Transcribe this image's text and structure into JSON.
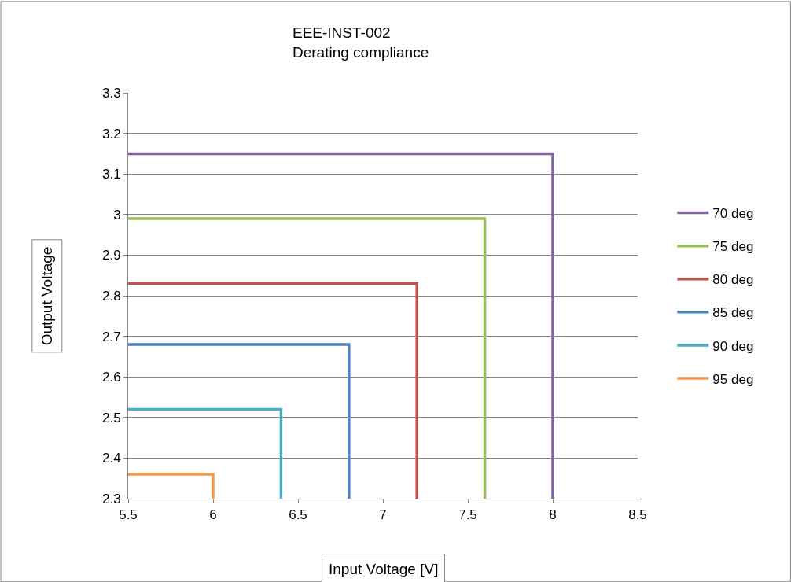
{
  "chart_data": {
    "type": "line",
    "title": "EEE-INST-002",
    "subtitle": "Derating compliance",
    "xlabel": "Input Voltage [V]",
    "ylabel": "Output Voltage",
    "series": [
      {
        "name": "70 deg",
        "color": "#8064a2",
        "x": [
          5.5,
          8,
          8
        ],
        "values": [
          3.15,
          3.15,
          2.3
        ]
      },
      {
        "name": "75 deg",
        "color": "#9bbb59",
        "x": [
          5.5,
          7.6,
          7.6
        ],
        "values": [
          2.99,
          2.99,
          2.3
        ]
      },
      {
        "name": "80 deg",
        "color": "#c0504d",
        "x": [
          5.5,
          7.2,
          7.2
        ],
        "values": [
          2.83,
          2.83,
          2.3
        ]
      },
      {
        "name": "85 deg",
        "color": "#4f81bd",
        "x": [
          5.5,
          6.8,
          6.8
        ],
        "values": [
          2.68,
          2.68,
          2.3
        ]
      },
      {
        "name": "90 deg",
        "color": "#4bacc6",
        "x": [
          5.5,
          6.4,
          6.4
        ],
        "values": [
          2.52,
          2.52,
          2.3
        ]
      },
      {
        "name": "95 deg",
        "color": "#f79646",
        "x": [
          5.5,
          6,
          6
        ],
        "values": [
          2.36,
          2.36,
          2.3
        ]
      }
    ],
    "xlim": [
      5.5,
      8.5
    ],
    "xticks": [
      5.5,
      6,
      6.5,
      7,
      7.5,
      8,
      8.5
    ],
    "ylim": [
      2.3,
      3.3
    ],
    "yticks": [
      2.3,
      2.4,
      2.5,
      2.6,
      2.7,
      2.8,
      2.9,
      3,
      3.1,
      3.2,
      3.3
    ],
    "grid": "y",
    "legend": "right",
    "marker": "none",
    "line_style": "solid"
  }
}
